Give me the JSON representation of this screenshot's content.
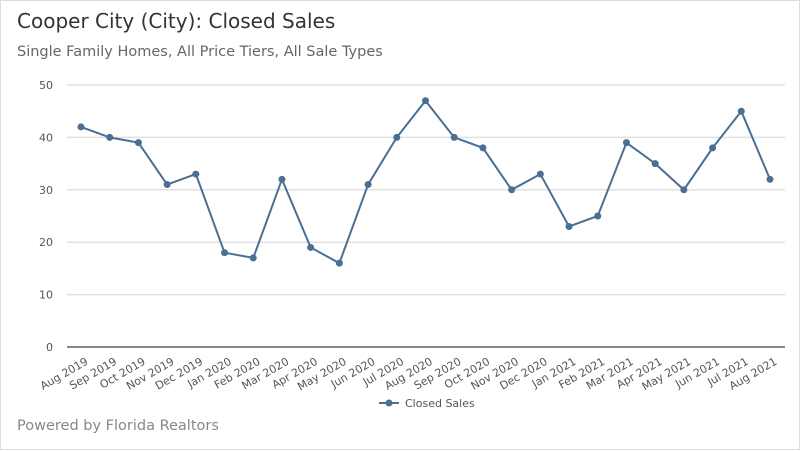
{
  "header": {
    "title": "Cooper City (City): Closed Sales",
    "subtitle": "Single Family Homes, All Price Tiers, All Sale Types"
  },
  "footer": {
    "text": "Powered by Florida Realtors"
  },
  "chart_data": {
    "type": "line",
    "title": "Cooper City (City): Closed Sales",
    "subtitle": "Single Family Homes, All Price Tiers, All Sale Types",
    "categories": [
      "Aug 2019",
      "Sep 2019",
      "Oct 2019",
      "Nov 2019",
      "Dec 2019",
      "Jan 2020",
      "Feb 2020",
      "Mar 2020",
      "Apr 2020",
      "May 2020",
      "Jun 2020",
      "Jul 2020",
      "Aug 2020",
      "Sep 2020",
      "Oct 2020",
      "Nov 2020",
      "Dec 2020",
      "Jan 2021",
      "Feb 2021",
      "Mar 2021",
      "Apr 2021",
      "May 2021",
      "Jun 2021",
      "Jul 2021",
      "Aug 2021"
    ],
    "series": [
      {
        "name": "Closed Sales",
        "color": "#4a6f93",
        "values": [
          42,
          40,
          39,
          31,
          33,
          18,
          17,
          32,
          19,
          16,
          31,
          40,
          47,
          40,
          38,
          30,
          33,
          23,
          25,
          39,
          35,
          30,
          38,
          45,
          32
        ]
      }
    ],
    "yticks": [
      0,
      10,
      20,
      30,
      40,
      50
    ],
    "ylim": [
      0,
      50
    ],
    "grid": true,
    "legend": "bottom"
  }
}
